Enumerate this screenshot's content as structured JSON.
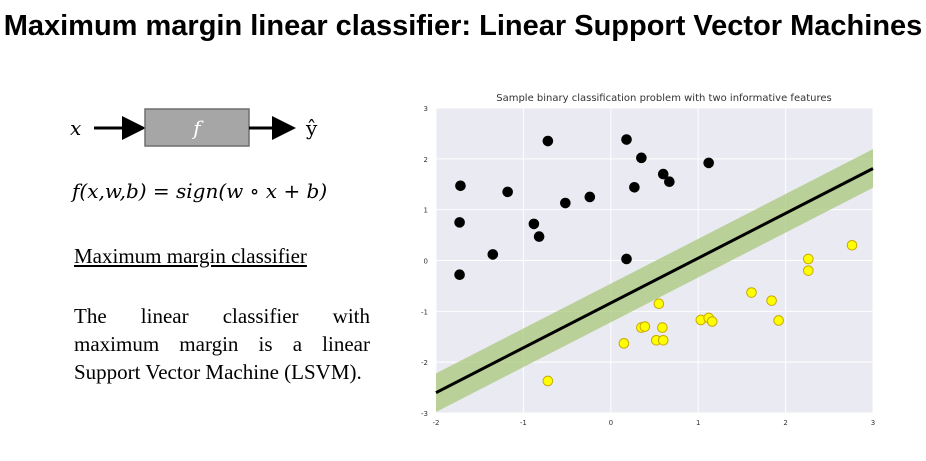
{
  "slide": {
    "title": "Maximum margin linear classifier: Linear Support Vector Machines",
    "diagram": {
      "input": "x",
      "box": "f",
      "output": "ŷ"
    },
    "formula": "f(x,w,b) = sign(w ∘ x + b)",
    "subheading": "Maximum margin classifier",
    "body": "The linear classifier with maximum margin is a linear Support Vector Machine (LSVM)."
  },
  "colors": {
    "class0": "#000000",
    "class1": "#ffff00",
    "margin_band": "#a8c87a",
    "plot_background": "#eaeaf2",
    "arrow_box": "#a6a6a6"
  },
  "chart_data": {
    "type": "scatter",
    "title": "Sample binary classification problem with two informative features",
    "xlim": [
      -2,
      3
    ],
    "ylim": [
      -3,
      3
    ],
    "xticks": [
      -2,
      -1,
      0,
      1,
      2,
      3
    ],
    "yticks": [
      -3,
      -2,
      -1,
      0,
      1,
      2,
      3
    ],
    "grid": true,
    "series": [
      {
        "color": "#000000",
        "points": [
          [
            -1.72,
            1.47
          ],
          [
            -1.73,
            0.75
          ],
          [
            -1.73,
            -0.28
          ],
          [
            -1.35,
            0.12
          ],
          [
            -1.18,
            1.35
          ],
          [
            -0.88,
            0.72
          ],
          [
            -0.82,
            0.47
          ],
          [
            -0.72,
            2.35
          ],
          [
            -0.52,
            1.13
          ],
          [
            -0.24,
            1.25
          ],
          [
            0.18,
            2.38
          ],
          [
            0.27,
            1.44
          ],
          [
            0.35,
            2.02
          ],
          [
            0.18,
            0.03
          ],
          [
            0.6,
            1.7
          ],
          [
            0.67,
            1.55
          ],
          [
            1.12,
            1.92
          ]
        ]
      },
      {
        "color": "#ffff00",
        "points": [
          [
            -0.72,
            -2.37
          ],
          [
            0.15,
            -1.63
          ],
          [
            0.35,
            -1.32
          ],
          [
            0.39,
            -1.3
          ],
          [
            0.52,
            -1.57
          ],
          [
            0.6,
            -1.57
          ],
          [
            0.59,
            -1.32
          ],
          [
            0.55,
            -0.85
          ],
          [
            1.03,
            -1.17
          ],
          [
            1.12,
            -1.13
          ],
          [
            1.16,
            -1.2
          ],
          [
            1.61,
            -0.63
          ],
          [
            1.84,
            -0.79
          ],
          [
            1.92,
            -1.18
          ],
          [
            2.26,
            0.03
          ],
          [
            2.26,
            -0.2
          ],
          [
            2.76,
            0.3
          ]
        ]
      }
    ],
    "decision_boundary": {
      "x": [
        -2.0,
        3.0
      ],
      "y": [
        -2.6,
        1.81
      ]
    },
    "margin_half_width": 0.38
  }
}
